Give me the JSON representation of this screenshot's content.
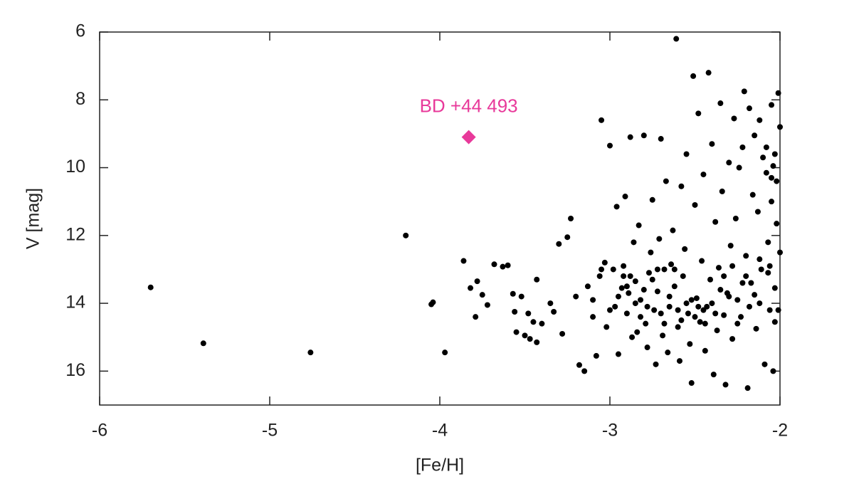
{
  "chart_data": {
    "type": "scatter",
    "xlabel": "[Fe/H]",
    "ylabel": "V [mag]",
    "xlim": [
      -6,
      -2
    ],
    "xticks": [
      -6,
      -5,
      -4,
      -3,
      -2
    ],
    "ylim": [
      6,
      17
    ],
    "yticks": [
      6,
      8,
      10,
      12,
      14,
      16
    ],
    "y_reversed": true,
    "series": [
      {
        "color": "#000000",
        "x": [
          -5.7,
          -5.39,
          -4.76,
          -4.2,
          -4.05,
          -4.04,
          -3.97,
          -3.86,
          -3.82,
          -3.79,
          -3.78,
          -3.75,
          -3.72,
          -3.68,
          -3.63,
          -3.6,
          -3.57,
          -3.56,
          -3.55,
          -3.52,
          -3.5,
          -3.48,
          -3.47,
          -3.45,
          -3.43,
          -3.43,
          -3.4,
          -3.35,
          -3.33,
          -3.3,
          -3.28,
          -3.25,
          -3.23,
          -3.2,
          -3.18,
          -3.15,
          -3.13,
          -3.1,
          -3.08,
          -3.06,
          -3.05,
          -3.03,
          -3.02,
          -3.0,
          -2.98,
          -2.97,
          -2.96,
          -2.95,
          -2.93,
          -2.92,
          -2.91,
          -2.9,
          -2.89,
          -2.88,
          -2.87,
          -2.86,
          -2.85,
          -2.84,
          -2.83,
          -2.82,
          -2.8,
          -2.79,
          -2.78,
          -2.77,
          -2.76,
          -2.75,
          -2.74,
          -2.73,
          -2.72,
          -2.71,
          -2.7,
          -2.69,
          -2.68,
          -2.67,
          -2.66,
          -2.65,
          -2.64,
          -2.63,
          -2.62,
          -2.61,
          -2.6,
          -2.59,
          -2.58,
          -2.57,
          -2.56,
          -2.55,
          -2.54,
          -2.53,
          -2.52,
          -2.51,
          -2.5,
          -2.49,
          -2.48,
          -2.47,
          -2.46,
          -2.45,
          -2.44,
          -2.43,
          -2.42,
          -2.41,
          -2.4,
          -2.39,
          -2.38,
          -2.37,
          -2.36,
          -2.35,
          -2.34,
          -2.33,
          -2.32,
          -2.31,
          -2.3,
          -2.29,
          -2.28,
          -2.27,
          -2.26,
          -2.25,
          -2.24,
          -2.23,
          -2.22,
          -2.21,
          -2.2,
          -2.19,
          -2.18,
          -2.17,
          -2.16,
          -2.15,
          -2.14,
          -2.13,
          -2.12,
          -2.11,
          -2.1,
          -2.09,
          -2.08,
          -2.07,
          -2.06,
          -2.05,
          -2.04,
          -2.03,
          -2.02,
          -2.01,
          -2.0,
          -2.0,
          -2.01,
          -2.02,
          -2.03,
          -2.04,
          -2.06,
          -2.08,
          -2.12,
          -2.15,
          -2.95,
          -2.9,
          -2.85,
          -2.8,
          -2.75,
          -2.7,
          -2.65,
          -2.6,
          -2.55,
          -2.5,
          -2.45,
          -2.4,
          -2.35,
          -2.3,
          -2.25,
          -2.2,
          -3.0,
          -3.05,
          -3.1,
          -2.92,
          -2.88,
          -2.82,
          -2.78,
          -2.72,
          -2.68,
          -2.62,
          -2.58,
          -2.52,
          -2.48,
          -2.44,
          -2.38,
          -2.33,
          -2.28,
          -2.22,
          -2.18,
          -2.12,
          -2.07,
          -2.05,
          -2.03,
          -2.05
        ],
        "values": [
          13.53,
          15.18,
          15.45,
          12.0,
          14.03,
          13.97,
          15.45,
          12.75,
          13.55,
          14.4,
          13.35,
          13.75,
          14.05,
          12.85,
          12.92,
          12.88,
          13.72,
          14.25,
          14.85,
          13.8,
          14.95,
          14.3,
          15.05,
          14.55,
          15.15,
          13.3,
          14.6,
          14.0,
          14.25,
          12.25,
          14.9,
          12.05,
          11.5,
          13.8,
          15.82,
          16.0,
          13.5,
          14.4,
          15.55,
          13.2,
          8.6,
          12.8,
          14.7,
          9.35,
          13.0,
          14.1,
          11.15,
          15.5,
          13.55,
          12.9,
          10.85,
          14.3,
          13.7,
          9.1,
          15.0,
          12.2,
          13.35,
          14.85,
          11.7,
          13.9,
          9.05,
          14.6,
          15.3,
          13.1,
          12.5,
          10.95,
          14.2,
          15.8,
          13.65,
          12.1,
          9.15,
          14.95,
          13.0,
          10.4,
          15.45,
          14.1,
          12.85,
          11.85,
          13.5,
          6.2,
          14.7,
          15.7,
          10.55,
          13.2,
          12.4,
          9.6,
          14.3,
          15.2,
          16.35,
          7.3,
          11.1,
          13.85,
          8.4,
          14.55,
          12.75,
          10.2,
          15.4,
          14.1,
          7.2,
          13.3,
          9.3,
          16.1,
          11.6,
          14.8,
          12.95,
          8.1,
          10.7,
          14.35,
          16.4,
          13.7,
          9.85,
          12.3,
          15.05,
          8.55,
          11.5,
          13.9,
          10.0,
          14.4,
          9.4,
          7.75,
          12.6,
          16.5,
          8.25,
          13.4,
          10.8,
          9.05,
          14.75,
          11.3,
          8.6,
          13.0,
          9.7,
          15.8,
          10.15,
          12.2,
          14.2,
          8.15,
          9.95,
          13.55,
          10.4,
          7.8,
          8.8,
          12.5,
          14.2,
          11.65,
          14.55,
          16.0,
          12.9,
          9.4,
          14.0,
          13.75,
          13.8,
          13.5,
          14.0,
          13.6,
          13.3,
          14.3,
          13.8,
          14.2,
          14.0,
          14.4,
          14.2,
          14.0,
          13.6,
          13.8,
          14.6,
          13.2,
          14.2,
          13.0,
          13.9,
          13.2,
          13.2,
          14.4,
          14.1,
          13.0,
          14.6,
          13.0,
          14.5,
          13.9,
          14.1,
          14.6,
          14.3,
          13.2,
          12.9,
          13.4,
          14.1,
          12.7,
          13.1,
          11.0,
          9.6,
          10.3
        ]
      }
    ],
    "annotations": [
      {
        "text": "BD +44 493",
        "x": -3.83,
        "y": 9.1,
        "color": "#e8399a"
      }
    ]
  }
}
